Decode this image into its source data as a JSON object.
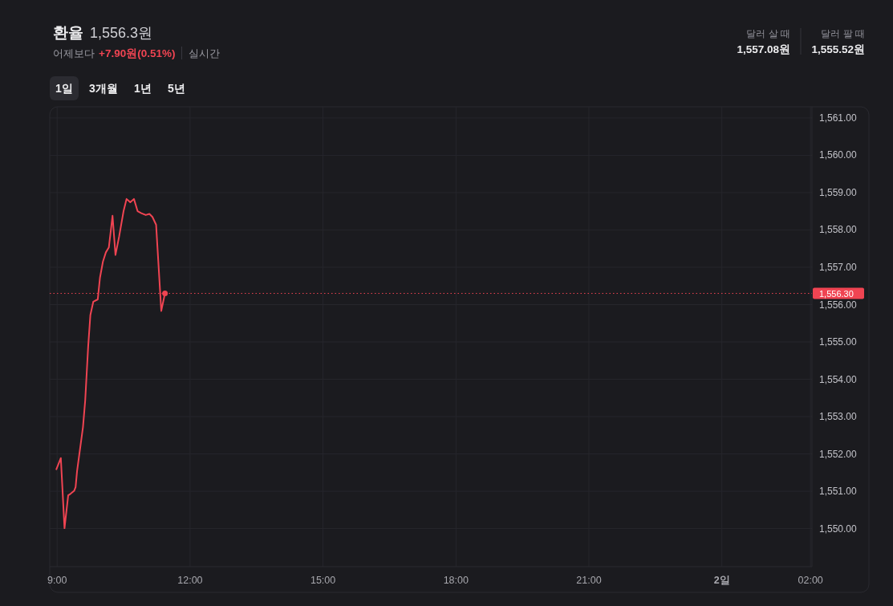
{
  "chart_data": {
    "type": "line",
    "title": "환율",
    "subtitle": "1,556.3원",
    "annotations": [
      "어제보다",
      "+7.90원(0.51%)",
      "실시간",
      "달러 살 때",
      "1,557.08원",
      "달러 팔 때",
      "1,555.52원",
      "1일",
      "3개월",
      "1년",
      "5년"
    ],
    "x": [
      "--01-01T08:59",
      "--01-01T09:05",
      "--01-01T09:10",
      "--01-01T09:15",
      "--01-01T09:18",
      "--01-01T09:23",
      "--01-01T09:25",
      "--01-01T09:27",
      "--01-01T09:35",
      "--01-01T09:38",
      "--01-01T09:42",
      "--01-01T09:45",
      "--01-01T09:49",
      "--01-01T09:55",
      "--01-01T09:58",
      "--01-01T10:02",
      "--01-01T10:06",
      "--01-01T10:10",
      "--01-01T10:15",
      "--01-01T10:19",
      "--01-01T10:24",
      "--01-01T10:30",
      "--01-01T10:34",
      "--01-01T10:39",
      "--01-01T10:44",
      "--01-01T10:49",
      "--01-01T10:54",
      "--01-01T11:00",
      "--01-01T11:05",
      "--01-01T11:09",
      "--01-01T11:14",
      "--01-01T11:21",
      "--01-01T11:26"
    ],
    "series": [
      {
        "color": "#f04452",
        "values": [
          1551.59,
          1551.89,
          1550.01,
          1550.89,
          1550.93,
          1551.01,
          1551.11,
          1551.54,
          1552.72,
          1553.43,
          1554.87,
          1555.72,
          1556.08,
          1556.14,
          1556.72,
          1557.15,
          1557.4,
          1557.53,
          1558.38,
          1557.33,
          1557.83,
          1558.51,
          1558.83,
          1558.74,
          1558.83,
          1558.5,
          1558.45,
          1558.4,
          1558.43,
          1558.35,
          1558.14,
          1555.83,
          1556.3
        ]
      },
      {
        "type": "scatter",
        "color": "#f04452",
        "x": [
          "--01-01T11:26"
        ],
        "values": [
          1556.3
        ]
      }
    ],
    "xlim": [
      "--01-01T08:50",
      "--01-02T02:02"
    ],
    "ylim": [
      1548.98,
      1561.3
    ],
    "xticks": [
      {
        "value": "--01-01T09:00",
        "label": "9:00"
      },
      {
        "value": "--01-01T12:00",
        "label": "12:00"
      },
      {
        "value": "--01-01T15:00",
        "label": "15:00"
      },
      {
        "value": "--01-01T18:00",
        "label": "18:00"
      },
      {
        "value": "--01-01T21:00",
        "label": "21:00"
      },
      {
        "value": "--01-02T00:00",
        "label": "2일"
      },
      {
        "value": "--01-02T02:00",
        "label": "02:00"
      }
    ],
    "yticks": [
      {
        "value": 1550,
        "label": "1,550.00"
      },
      {
        "value": 1551,
        "label": "1,551.00"
      },
      {
        "value": 1552,
        "label": "1,552.00"
      },
      {
        "value": 1553,
        "label": "1,553.00"
      },
      {
        "value": 1554,
        "label": "1,554.00"
      },
      {
        "value": 1555,
        "label": "1,555.00"
      },
      {
        "value": 1556,
        "label": "1,556.00"
      },
      {
        "value": 1557,
        "label": "1,557.00"
      },
      {
        "value": 1558,
        "label": "1,558.00"
      },
      {
        "value": 1559,
        "label": "1,559.00"
      },
      {
        "value": 1560,
        "label": "1,560.00"
      },
      {
        "value": 1561,
        "label": "1,561.00"
      }
    ],
    "grid": true,
    "line_style": "solid",
    "ref_lines": [
      {
        "axis": "y",
        "value": 1556.3,
        "label": "1,556.30",
        "color": "#f04452",
        "line_style": "dotted"
      }
    ]
  }
}
